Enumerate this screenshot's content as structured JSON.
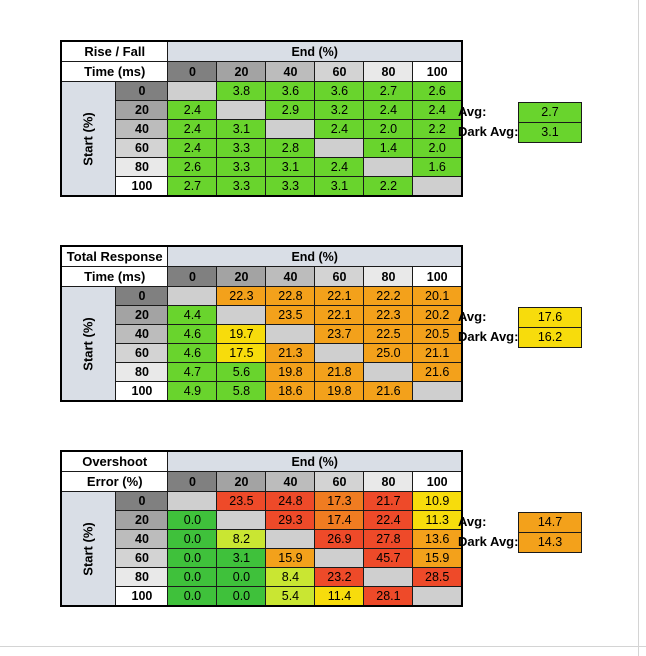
{
  "columns": [
    "0",
    "20",
    "40",
    "60",
    "80",
    "100"
  ],
  "rows": [
    "0",
    "20",
    "40",
    "60",
    "80",
    "100"
  ],
  "colors": {
    "header_blue": "#d9dee6",
    "diagonal": "#cfcfcf",
    "green": "#69d42d",
    "dark_green": "#3fc13b",
    "yellow_green": "#c9e632",
    "yellow": "#f7dc0c",
    "orange": "#f3a11b",
    "dark_orange": "#f07c21",
    "red": "#ee4a29"
  },
  "chart_data": [
    {
      "type": "table",
      "title_line1": "Rise / Fall",
      "title_line2": "Time (ms)",
      "end_label": "End (%)",
      "start_label": "Start (%)",
      "header_shades": [
        "#808080",
        "#a3a3a3",
        "#bcbcbc",
        "#d3d3d3",
        "#e9e9e9",
        "#ffffff"
      ],
      "cells": [
        [
          "",
          "3.8",
          "3.6",
          "3.6",
          "2.7",
          "2.6"
        ],
        [
          "2.4",
          "",
          "2.9",
          "3.2",
          "2.4",
          "2.4"
        ],
        [
          "2.4",
          "3.1",
          "",
          "2.4",
          "2.0",
          "2.2"
        ],
        [
          "2.4",
          "3.3",
          "2.8",
          "",
          "1.4",
          "2.0"
        ],
        [
          "2.6",
          "3.3",
          "3.1",
          "2.4",
          "",
          "1.6"
        ],
        [
          "2.7",
          "3.3",
          "3.3",
          "3.1",
          "2.2",
          ""
        ]
      ],
      "cell_colors": [
        [
          "diagonal",
          "green",
          "green",
          "green",
          "green",
          "green"
        ],
        [
          "green",
          "diagonal",
          "green",
          "green",
          "green",
          "green"
        ],
        [
          "green",
          "green",
          "diagonal",
          "green",
          "green",
          "green"
        ],
        [
          "green",
          "green",
          "green",
          "diagonal",
          "green",
          "green"
        ],
        [
          "green",
          "green",
          "green",
          "green",
          "diagonal",
          "green"
        ],
        [
          "green",
          "green",
          "green",
          "green",
          "green",
          "diagonal"
        ]
      ],
      "avg_label": "Avg:",
      "avg": "2.7",
      "avg_color": "green",
      "dark_avg_label": "Dark Avg:",
      "dark_avg": "3.1",
      "dark_avg_color": "green"
    },
    {
      "type": "table",
      "title_line1": "Total Response",
      "title_line2": "Time (ms)",
      "end_label": "End (%)",
      "start_label": "Start (%)",
      "header_shades": [
        "#808080",
        "#a3a3a3",
        "#bcbcbc",
        "#d3d3d3",
        "#e9e9e9",
        "#ffffff"
      ],
      "cells": [
        [
          "",
          "22.3",
          "22.8",
          "22.1",
          "22.2",
          "20.1"
        ],
        [
          "4.4",
          "",
          "23.5",
          "22.1",
          "22.3",
          "20.2"
        ],
        [
          "4.6",
          "19.7",
          "",
          "23.7",
          "22.5",
          "20.5"
        ],
        [
          "4.6",
          "17.5",
          "21.3",
          "",
          "25.0",
          "21.1"
        ],
        [
          "4.7",
          "5.6",
          "19.8",
          "21.8",
          "",
          "21.6"
        ],
        [
          "4.9",
          "5.8",
          "18.6",
          "19.8",
          "21.6",
          ""
        ]
      ],
      "cell_colors": [
        [
          "diagonal",
          "orange",
          "orange",
          "orange",
          "orange",
          "orange"
        ],
        [
          "green",
          "diagonal",
          "orange",
          "orange",
          "orange",
          "orange"
        ],
        [
          "green",
          "yellow",
          "diagonal",
          "orange",
          "orange",
          "orange"
        ],
        [
          "green",
          "yellow",
          "orange",
          "diagonal",
          "orange",
          "orange"
        ],
        [
          "green",
          "green",
          "orange",
          "orange",
          "diagonal",
          "orange"
        ],
        [
          "green",
          "green",
          "orange",
          "orange",
          "orange",
          "diagonal"
        ]
      ],
      "avg_label": "Avg:",
      "avg": "17.6",
      "avg_color": "yellow",
      "dark_avg_label": "Dark Avg:",
      "dark_avg": "16.2",
      "dark_avg_color": "yellow"
    },
    {
      "type": "table",
      "title_line1": "Overshoot",
      "title_line2": "Error (%)",
      "end_label": "End (%)",
      "start_label": "Start (%)",
      "header_shades": [
        "#808080",
        "#a3a3a3",
        "#bcbcbc",
        "#d3d3d3",
        "#e9e9e9",
        "#ffffff"
      ],
      "cells": [
        [
          "",
          "23.5",
          "24.8",
          "17.3",
          "21.7",
          "10.9"
        ],
        [
          "0.0",
          "",
          "29.3",
          "17.4",
          "22.4",
          "11.3"
        ],
        [
          "0.0",
          "8.2",
          "",
          "26.9",
          "27.8",
          "13.6"
        ],
        [
          "0.0",
          "3.1",
          "15.9",
          "",
          "45.7",
          "15.9"
        ],
        [
          "0.0",
          "0.0",
          "8.4",
          "23.2",
          "",
          "28.5"
        ],
        [
          "0.0",
          "0.0",
          "5.4",
          "11.4",
          "28.1",
          ""
        ]
      ],
      "cell_colors": [
        [
          "diagonal",
          "red",
          "red",
          "dark_orange",
          "red",
          "yellow"
        ],
        [
          "dark_green",
          "diagonal",
          "red",
          "dark_orange",
          "red",
          "yellow"
        ],
        [
          "dark_green",
          "yellow_green",
          "diagonal",
          "red",
          "red",
          "orange"
        ],
        [
          "dark_green",
          "dark_green",
          "orange",
          "diagonal",
          "red",
          "orange"
        ],
        [
          "dark_green",
          "dark_green",
          "yellow_green",
          "red",
          "diagonal",
          "red"
        ],
        [
          "dark_green",
          "dark_green",
          "yellow_green",
          "yellow",
          "red",
          "diagonal"
        ]
      ],
      "avg_label": "Avg:",
      "avg": "14.7",
      "avg_color": "orange",
      "dark_avg_label": "Dark Avg:",
      "dark_avg": "14.3",
      "dark_avg_color": "orange"
    }
  ]
}
